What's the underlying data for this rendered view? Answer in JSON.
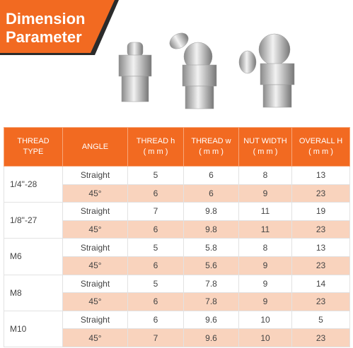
{
  "header": {
    "title": [
      "Dimension",
      "Parameter"
    ]
  },
  "table": {
    "columns": [
      [
        "THREAD",
        "TYPE"
      ],
      [
        "ANGLE"
      ],
      [
        "THREAD h",
        "( m m )"
      ],
      [
        "THREAD w",
        "( m m )"
      ],
      [
        "NUT WIDTH",
        "( m m )"
      ],
      [
        "OVERALL H",
        "( m m )"
      ]
    ],
    "groups": [
      {
        "type": "1/4\"-28",
        "rows": [
          [
            "Straight",
            5,
            6,
            8,
            13
          ],
          [
            "45°",
            6,
            6,
            9,
            23
          ]
        ]
      },
      {
        "type": "1/8\"-27",
        "rows": [
          [
            "Straight",
            7,
            9.8,
            11,
            19
          ],
          [
            "45°",
            6,
            9.8,
            11,
            23
          ]
        ]
      },
      {
        "type": "M6",
        "rows": [
          [
            "Straight",
            5,
            5.8,
            8,
            13
          ],
          [
            "45°",
            6,
            5.6,
            9,
            23
          ]
        ]
      },
      {
        "type": "M8",
        "rows": [
          [
            "Straight",
            5,
            7.8,
            9,
            14
          ],
          [
            "45°",
            6,
            7.8,
            9,
            23
          ]
        ]
      },
      {
        "type": "M10",
        "rows": [
          [
            "Straight",
            6,
            9.6,
            10,
            5
          ],
          [
            "45°",
            7,
            9.6,
            10,
            23
          ]
        ]
      }
    ]
  }
}
